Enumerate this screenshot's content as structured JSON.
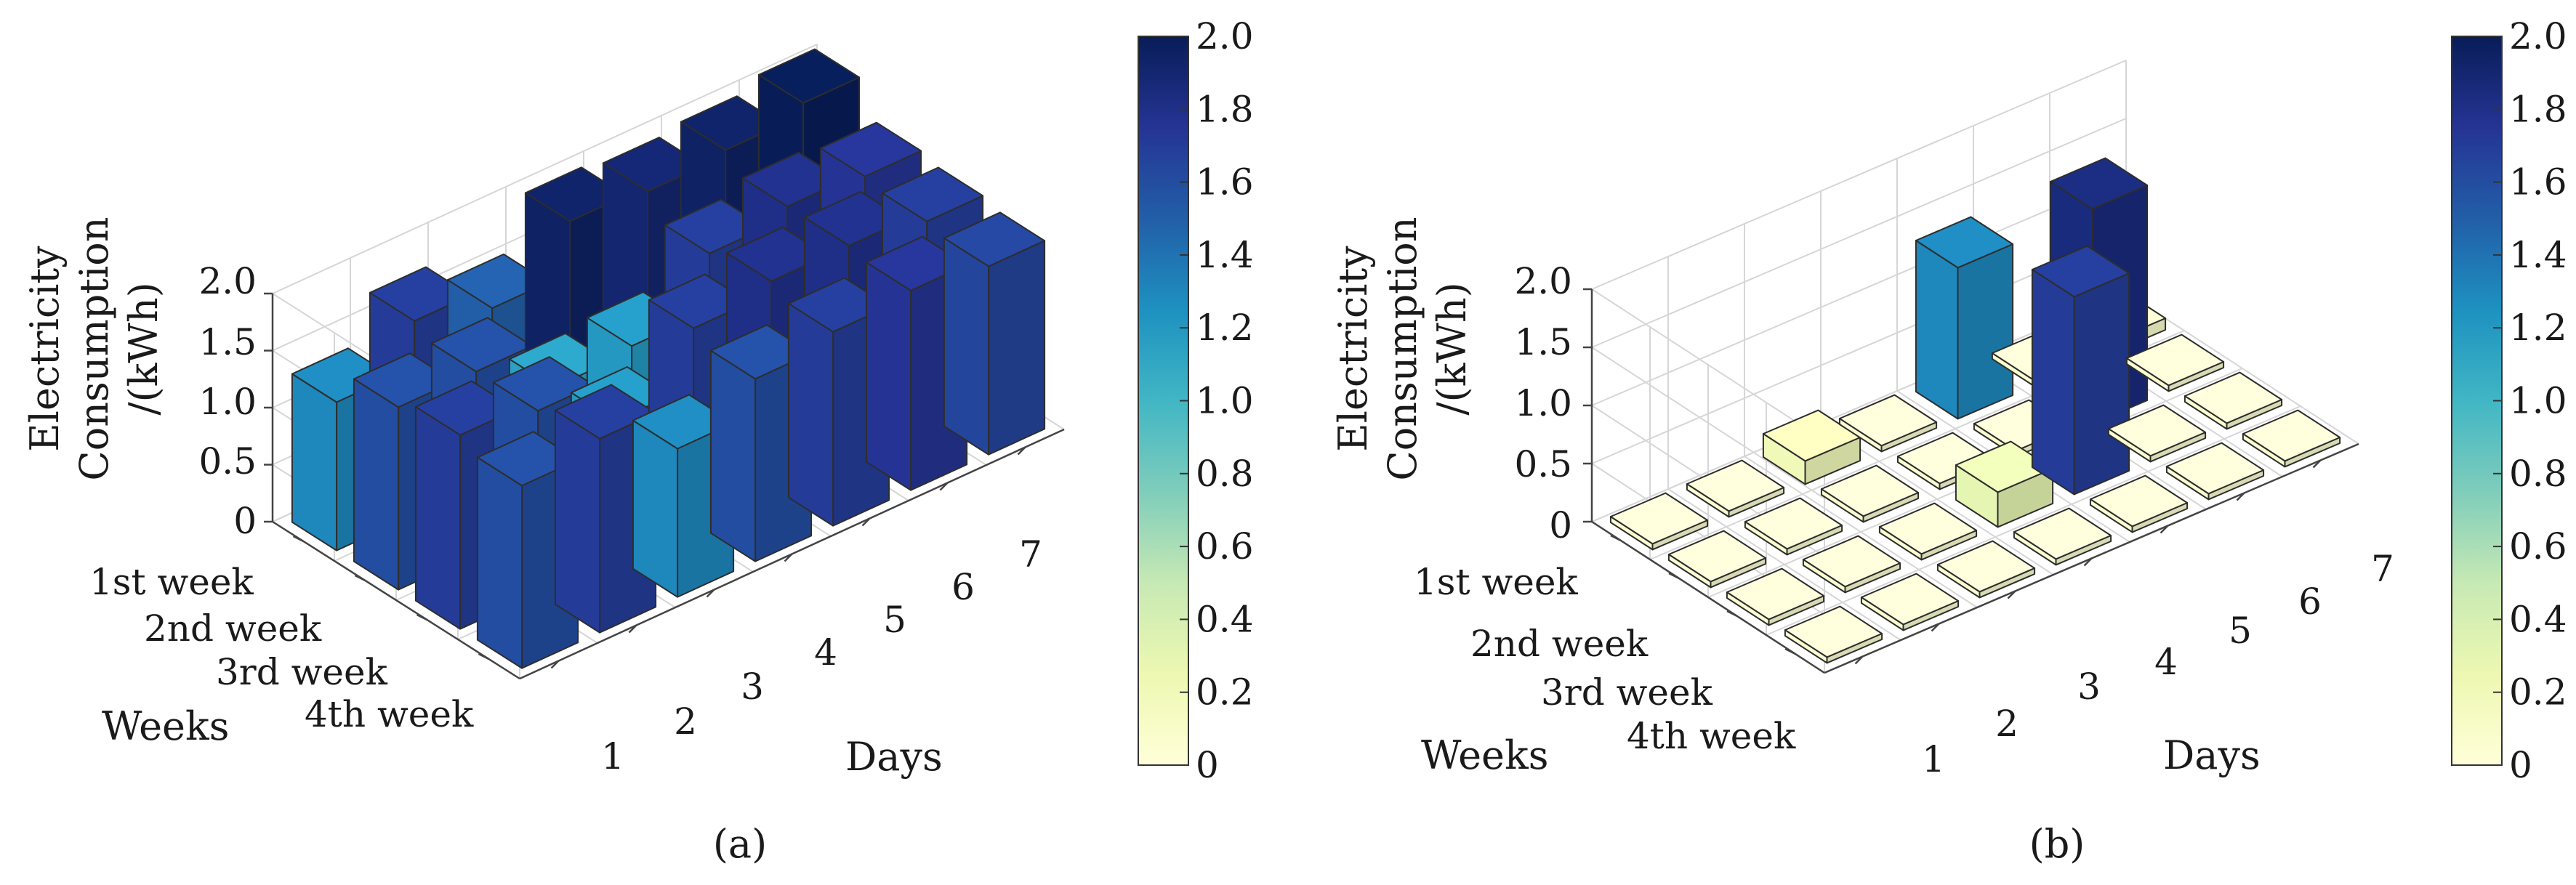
{
  "chart_data": [
    {
      "type": "bar3d",
      "caption": "(a)",
      "zlabel_lines": [
        "Electricity",
        "Consumption",
        "/(kWh)"
      ],
      "xlabel": "Days",
      "ylabel": "Weeks",
      "x_ticks": [
        "1",
        "2",
        "3",
        "4",
        "5",
        "6",
        "7"
      ],
      "y_ticks": [
        "1st week",
        "2nd week",
        "3rd week",
        "4th week"
      ],
      "z_ticks": [
        "0",
        "0.5",
        "1.0",
        "1.5",
        "2.0"
      ],
      "zlim": [
        0,
        2.0
      ],
      "colorbar": {
        "range": [
          0,
          2.0
        ],
        "ticks": [
          "0",
          "0.2",
          "0.4",
          "0.6",
          "0.8",
          "1.0",
          "1.2",
          "1.4",
          "1.6",
          "1.8",
          "2.0"
        ]
      },
      "values": [
        [
          1.3,
          1.7,
          1.5,
          1.95,
          1.9,
          1.95,
          2.05
        ],
        [
          1.6,
          1.6,
          1.15,
          1.2,
          1.7,
          1.8,
          1.75
        ],
        [
          1.7,
          1.6,
          1.2,
          1.7,
          1.8,
          1.8,
          1.7
        ],
        [
          1.6,
          1.7,
          1.3,
          1.6,
          1.7,
          1.75,
          1.65
        ]
      ]
    },
    {
      "type": "bar3d",
      "caption": "(b)",
      "zlabel_lines": [
        "Electricity",
        "Consumption",
        "/(kWh)"
      ],
      "xlabel": "Days",
      "ylabel": "Weeks",
      "x_ticks": [
        "1",
        "2",
        "3",
        "4",
        "5",
        "6",
        "7"
      ],
      "y_ticks": [
        "1st week",
        "2nd week",
        "3rd week",
        "4th week"
      ],
      "z_ticks": [
        "0",
        "0.5",
        "1.0",
        "1.5",
        "2.0"
      ],
      "zlim": [
        0,
        2.0
      ],
      "colorbar": {
        "range": [
          0,
          2.0
        ],
        "ticks": [
          "0",
          "0.2",
          "0.4",
          "0.6",
          "0.8",
          "1.0",
          "1.2",
          "1.4",
          "1.6",
          "1.8",
          "2.0"
        ]
      },
      "values": [
        [
          0.05,
          0.05,
          0.2,
          0.05,
          1.3,
          0.05,
          0.1
        ],
        [
          0.05,
          0.05,
          0.05,
          0.05,
          0.05,
          1.85,
          0.05
        ],
        [
          0.05,
          0.05,
          0.05,
          0.3,
          1.7,
          0.05,
          0.05
        ],
        [
          0.05,
          0.05,
          0.05,
          0.05,
          0.05,
          0.05,
          0.05
        ]
      ]
    }
  ]
}
